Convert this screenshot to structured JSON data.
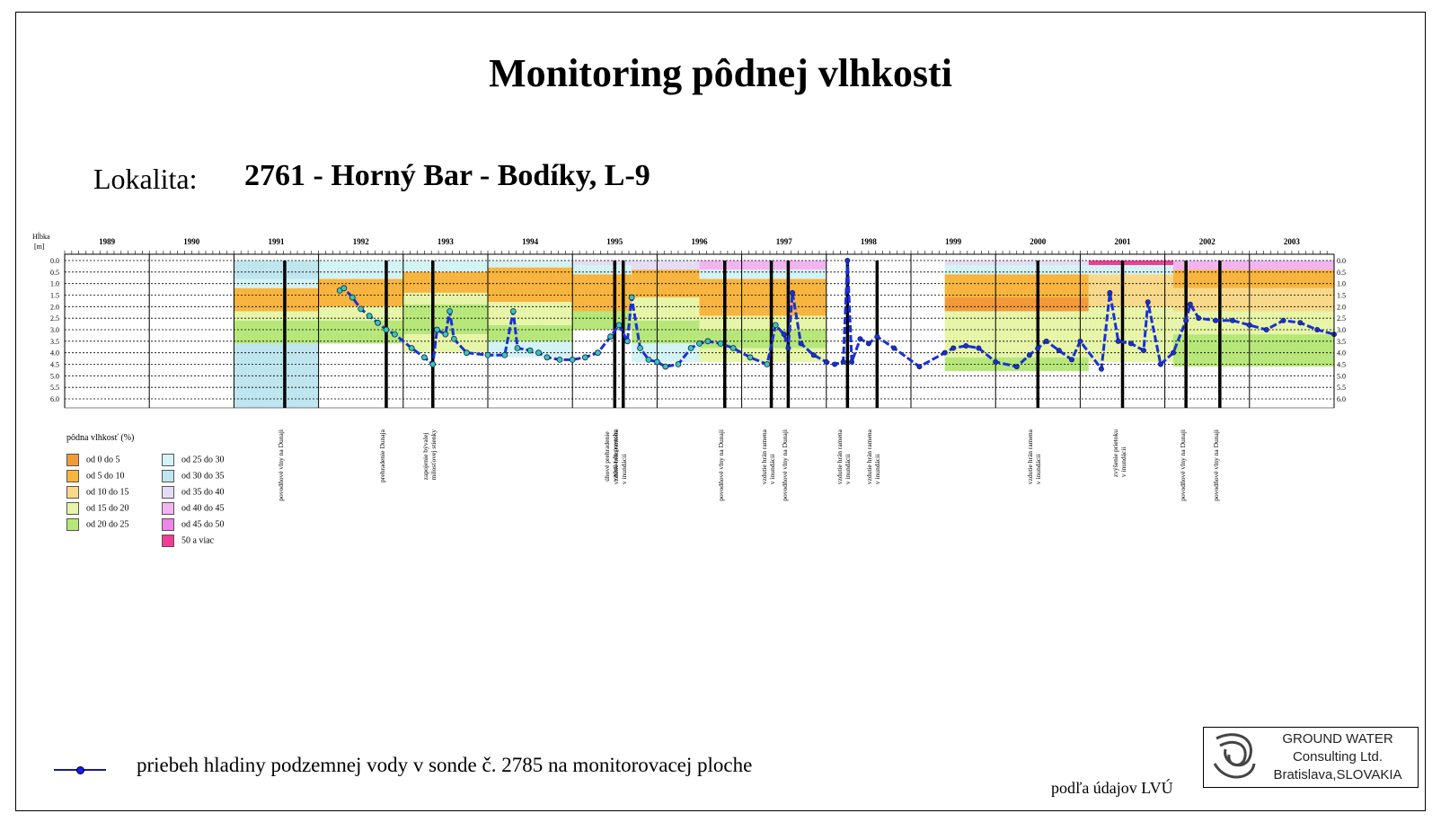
{
  "title": "Monitoring pôdnej vlhkosti",
  "location": {
    "label": "Lokalita:",
    "value": "2761 - Horný Bar - Bodíky, L-9"
  },
  "chart_data": {
    "type": "heatmap",
    "ylabel": "Hĺbka [m]",
    "ylim": [
      0.0,
      6.0
    ],
    "yticks": [
      "0.0",
      "0.5",
      "1.0",
      "1.5",
      "2.0",
      "2.5",
      "3.0",
      "3.5",
      "4.0",
      "4.5",
      "5.0",
      "5.5",
      "6.0"
    ],
    "xlim": [
      1988.5,
      2003.5
    ],
    "years": [
      "1989",
      "1990",
      "1991",
      "1992",
      "1993",
      "1994",
      "1995",
      "1996",
      "1997",
      "1998",
      "1999",
      "2000",
      "2001",
      "2002",
      "2003"
    ],
    "legend_title": "pôdna vlhkosť (%)",
    "moisture_classes": [
      {
        "label": "od 0 do 5",
        "color": "#f29a3a"
      },
      {
        "label": "od 5 do 10",
        "color": "#f7b53f"
      },
      {
        "label": "od 10 do 15",
        "color": "#f8d98a"
      },
      {
        "label": "od 15 do 20",
        "color": "#e6f5a8"
      },
      {
        "label": "od 20 do 25",
        "color": "#b7e77a"
      },
      {
        "label": "od 25 do 30",
        "color": "#d4f3f5"
      },
      {
        "label": "od 30 do 35",
        "color": "#bfe6ee"
      },
      {
        "label": "od 35 do 40",
        "color": "#e5dcf5"
      },
      {
        "label": "od 40 do 45",
        "color": "#f2b4f0"
      },
      {
        "label": "od 45 do 50",
        "color": "#ec86e8"
      },
      {
        "label": "50 a viac",
        "color": "#ee3f95"
      }
    ],
    "moisture_blocks": [
      {
        "x0": 1990.5,
        "x1": 1991.5,
        "layers": [
          [
            0.0,
            0.8,
            6
          ],
          [
            0.8,
            1.2,
            5
          ],
          [
            1.2,
            2.2,
            1
          ],
          [
            2.2,
            2.6,
            3
          ],
          [
            2.6,
            3.0,
            4
          ],
          [
            3.0,
            3.6,
            4
          ],
          [
            3.6,
            6.4,
            6
          ]
        ]
      },
      {
        "x0": 1991.5,
        "x1": 1992.5,
        "layers": [
          [
            0.0,
            0.8,
            5
          ],
          [
            0.8,
            2.0,
            1
          ],
          [
            2.0,
            2.6,
            3
          ],
          [
            2.6,
            3.1,
            4
          ],
          [
            3.1,
            3.6,
            4
          ]
        ]
      },
      {
        "x0": 1992.5,
        "x1": 1993.5,
        "layers": [
          [
            0.0,
            0.5,
            5
          ],
          [
            0.5,
            1.4,
            1
          ],
          [
            1.4,
            1.9,
            3
          ],
          [
            1.9,
            2.4,
            4
          ],
          [
            2.4,
            3.2,
            4
          ],
          [
            3.2,
            4.0,
            3
          ]
        ]
      },
      {
        "x0": 1993.5,
        "x1": 1994.5,
        "layers": [
          [
            0.0,
            0.3,
            5
          ],
          [
            0.3,
            1.8,
            1
          ],
          [
            1.8,
            2.8,
            3
          ],
          [
            2.8,
            3.5,
            4
          ],
          [
            3.5,
            4.2,
            5
          ]
        ]
      },
      {
        "x0": 1994.5,
        "x1": 1995.2,
        "layers": [
          [
            0.0,
            0.2,
            7
          ],
          [
            0.2,
            0.6,
            5
          ],
          [
            0.6,
            2.2,
            1
          ],
          [
            2.2,
            3.0,
            4
          ]
        ]
      },
      {
        "x0": 1995.2,
        "x1": 1996.0,
        "layers": [
          [
            0.0,
            0.4,
            7
          ],
          [
            0.4,
            1.6,
            1
          ],
          [
            1.6,
            2.6,
            3
          ],
          [
            2.6,
            3.6,
            4
          ],
          [
            3.6,
            4.4,
            5
          ]
        ]
      },
      {
        "x0": 1996.0,
        "x1": 1997.5,
        "layers": [
          [
            0.0,
            0.4,
            8
          ],
          [
            0.4,
            0.8,
            5
          ],
          [
            0.8,
            2.4,
            1
          ],
          [
            2.4,
            3.0,
            3
          ],
          [
            3.0,
            3.8,
            4
          ],
          [
            3.8,
            4.4,
            3
          ]
        ]
      },
      {
        "x0": 1998.9,
        "x1": 2000.6,
        "layers": [
          [
            0.0,
            0.2,
            7
          ],
          [
            0.2,
            0.6,
            5
          ],
          [
            0.6,
            1.6,
            1
          ],
          [
            1.6,
            2.2,
            0
          ],
          [
            2.2,
            3.0,
            3
          ],
          [
            3.0,
            4.2,
            3
          ],
          [
            4.2,
            4.8,
            4
          ]
        ]
      },
      {
        "x0": 2000.6,
        "x1": 2001.6,
        "layers": [
          [
            0.0,
            0.2,
            10
          ],
          [
            0.2,
            0.6,
            5
          ],
          [
            0.6,
            2.0,
            2
          ],
          [
            2.0,
            3.0,
            3
          ],
          [
            3.0,
            4.4,
            3
          ]
        ]
      },
      {
        "x0": 2001.6,
        "x1": 2003.5,
        "layers": [
          [
            0.0,
            0.4,
            8
          ],
          [
            0.4,
            1.2,
            1
          ],
          [
            1.2,
            2.2,
            2
          ],
          [
            2.2,
            3.2,
            3
          ],
          [
            3.2,
            4.6,
            4
          ]
        ]
      }
    ],
    "event_markers": [
      1991.1,
      1992.3,
      1992.85,
      1995.0,
      1995.1,
      1996.3,
      1996.85,
      1997.05,
      1997.75,
      1998.1,
      2000.0,
      2001.0,
      2001.75,
      2002.15
    ],
    "groundwater_series": {
      "name": "priebeh hladiny podzemnej vody v sonde č. 2785 na monitorovacej ploche",
      "points": [
        [
          1991.75,
          1.3
        ],
        [
          1991.8,
          1.2
        ],
        [
          1991.9,
          1.6
        ],
        [
          1992.0,
          2.1
        ],
        [
          1992.1,
          2.4
        ],
        [
          1992.2,
          2.7
        ],
        [
          1992.3,
          3.0
        ],
        [
          1992.4,
          3.2
        ],
        [
          1992.6,
          3.8
        ],
        [
          1992.75,
          4.2
        ],
        [
          1992.85,
          4.5
        ],
        [
          1992.9,
          3.0
        ],
        [
          1993.0,
          3.2
        ],
        [
          1993.05,
          2.2
        ],
        [
          1993.1,
          3.4
        ],
        [
          1993.25,
          4.0
        ],
        [
          1993.5,
          4.1
        ],
        [
          1993.7,
          4.1
        ],
        [
          1993.8,
          2.2
        ],
        [
          1993.85,
          3.8
        ],
        [
          1994.0,
          3.9
        ],
        [
          1994.1,
          4.0
        ],
        [
          1994.2,
          4.2
        ],
        [
          1994.35,
          4.3
        ],
        [
          1994.5,
          4.3
        ],
        [
          1994.65,
          4.2
        ],
        [
          1994.8,
          4.0
        ],
        [
          1994.95,
          3.3
        ],
        [
          1995.05,
          2.8
        ],
        [
          1995.15,
          3.5
        ],
        [
          1995.2,
          1.6
        ],
        [
          1995.3,
          3.8
        ],
        [
          1995.4,
          4.3
        ],
        [
          1995.5,
          4.4
        ],
        [
          1995.6,
          4.6
        ],
        [
          1995.75,
          4.5
        ],
        [
          1995.9,
          3.8
        ],
        [
          1996.0,
          3.6
        ],
        [
          1996.1,
          3.5
        ],
        [
          1996.25,
          3.6
        ],
        [
          1996.4,
          3.8
        ],
        [
          1996.6,
          4.2
        ],
        [
          1996.8,
          4.5
        ],
        [
          1996.9,
          2.8
        ],
        [
          1997.0,
          3.2
        ],
        [
          1997.05,
          3.8
        ],
        [
          1997.1,
          1.4
        ],
        [
          1997.2,
          3.6
        ],
        [
          1997.35,
          4.1
        ],
        [
          1997.5,
          4.4
        ],
        [
          1997.6,
          4.5
        ],
        [
          1997.7,
          4.4
        ],
        [
          1997.75,
          0.0
        ],
        [
          1997.8,
          4.4
        ],
        [
          1997.9,
          3.4
        ],
        [
          1998.0,
          3.6
        ],
        [
          1998.1,
          3.3
        ],
        [
          1998.3,
          3.8
        ],
        [
          1998.6,
          4.6
        ],
        [
          1998.9,
          4.0
        ],
        [
          1999.0,
          3.8
        ],
        [
          1999.15,
          3.7
        ],
        [
          1999.3,
          3.8
        ],
        [
          1999.5,
          4.4
        ],
        [
          1999.75,
          4.6
        ],
        [
          1999.9,
          4.1
        ],
        [
          2000.0,
          3.8
        ],
        [
          2000.1,
          3.5
        ],
        [
          2000.25,
          3.9
        ],
        [
          2000.4,
          4.3
        ],
        [
          2000.5,
          3.5
        ],
        [
          2000.75,
          4.7
        ],
        [
          2000.85,
          1.4
        ],
        [
          2000.95,
          3.5
        ],
        [
          2001.1,
          3.6
        ],
        [
          2001.25,
          3.9
        ],
        [
          2001.3,
          1.8
        ],
        [
          2001.45,
          4.5
        ],
        [
          2001.6,
          4.0
        ],
        [
          2001.75,
          2.6
        ],
        [
          2001.8,
          1.9
        ],
        [
          2001.9,
          2.5
        ],
        [
          2002.1,
          2.6
        ],
        [
          2002.3,
          2.6
        ],
        [
          2002.5,
          2.8
        ],
        [
          2002.7,
          3.0
        ],
        [
          2002.9,
          2.6
        ],
        [
          2003.1,
          2.7
        ],
        [
          2003.3,
          3.0
        ],
        [
          2003.5,
          3.2
        ]
      ]
    }
  },
  "event_labels": [
    {
      "text": "povodňové vlny na Dunaji",
      "year": 1991.1
    },
    {
      "text": "prehradenie Dunaja",
      "year": 1992.3
    },
    {
      "text": "zapojenie bývalej\nmilosťovej stienky",
      "year": 1992.85
    },
    {
      "text": "úhové prehradenie\nvzdutia do povrchu",
      "year": 1995.0
    },
    {
      "text": "vzdutie hrán ramena\nv inundácii",
      "year": 1995.1
    },
    {
      "text": "povodňové vlny na Dunaji",
      "year": 1996.3
    },
    {
      "text": "vzdutie hrán ramena\nv inundácii",
      "year": 1996.85
    },
    {
      "text": "povodňové vlny na Dunaji",
      "year": 1997.05
    },
    {
      "text": "vzdutie hrán ramena\nv inundácii",
      "year": 1997.75
    },
    {
      "text": "vzdutie hrán ramena\nv inundácii",
      "year": 1998.1
    },
    {
      "text": "vzdutie hrán ramena\nv inundácii",
      "year": 2000.0
    },
    {
      "text": "zvýšenie prietoku\nv inundácii",
      "year": 2001.0
    },
    {
      "text": "povodňové vlny na Dunaji",
      "year": 2001.75
    },
    {
      "text": "povodňové vlny na Dunaji",
      "year": 2002.15
    }
  ],
  "source_text": "podľa údajov LVÚ",
  "logo": {
    "line1": "GROUND WATER",
    "line2": "Consulting Ltd.",
    "line3": "Bratislava,SLOVAKIA"
  }
}
